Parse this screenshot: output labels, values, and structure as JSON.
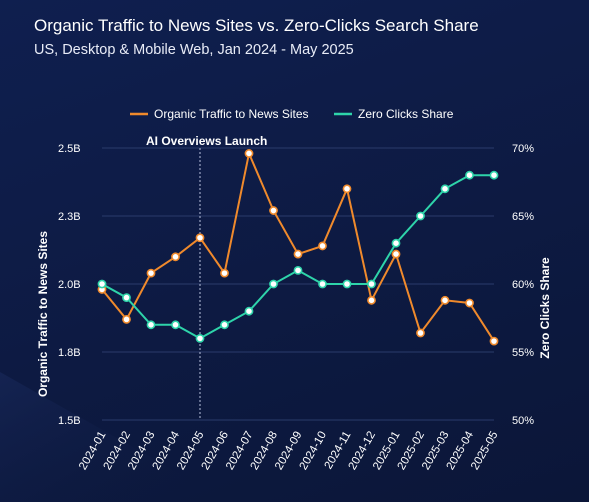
{
  "chart_data": {
    "type": "line",
    "title": "Organic Traffic to News Sites vs. Zero-Clicks Search Share",
    "subtitle": "US, Desktop & Mobile Web, Jan 2024 - May 2025",
    "categories": [
      "2024-01",
      "2024-02",
      "2024-03",
      "2024-04",
      "2024-05",
      "2024-06",
      "2024-07",
      "2024-08",
      "2024-09",
      "2024-10",
      "2024-11",
      "2024-12",
      "2025-01",
      "2025-02",
      "2025-03",
      "2025-04",
      "2025-05"
    ],
    "series": [
      {
        "name": "Organic Traffic to News Sites",
        "axis": "left",
        "color": "#f08a2c",
        "values": [
          1.98,
          1.87,
          2.04,
          2.1,
          2.17,
          2.04,
          2.48,
          2.27,
          2.11,
          2.14,
          2.35,
          1.94,
          2.11,
          1.82,
          1.94,
          1.93,
          1.79
        ]
      },
      {
        "name": "Zero Clicks Share",
        "axis": "right",
        "color": "#2ed4aa",
        "values": [
          60,
          59,
          57,
          57,
          56,
          57,
          58,
          60,
          61,
          60,
          60,
          60,
          63,
          65,
          67,
          68,
          68
        ]
      }
    ],
    "ylabel": "Organic Traffic to News Sites",
    "y2label": "Zero Clicks Share",
    "ylim": [
      1.5,
      2.5
    ],
    "y2lim": [
      50,
      70
    ],
    "yticks": [
      {
        "value": 2.5,
        "label": "2.5B"
      },
      {
        "value": 2.25,
        "label": "2.3B"
      },
      {
        "value": 2.0,
        "label": "2.0B"
      },
      {
        "value": 1.75,
        "label": "1.8B"
      },
      {
        "value": 1.5,
        "label": "1.5B"
      }
    ],
    "y2ticks": [
      {
        "value": 70,
        "label": "70%"
      },
      {
        "value": 65,
        "label": "65%"
      },
      {
        "value": 60,
        "label": "60%"
      },
      {
        "value": 55,
        "label": "55%"
      },
      {
        "value": 50,
        "label": "50%"
      }
    ],
    "annotation": {
      "label": "AI Overviews Launch",
      "category": "2024-05"
    },
    "legend_position": "top-center",
    "grid": "horizontal"
  }
}
